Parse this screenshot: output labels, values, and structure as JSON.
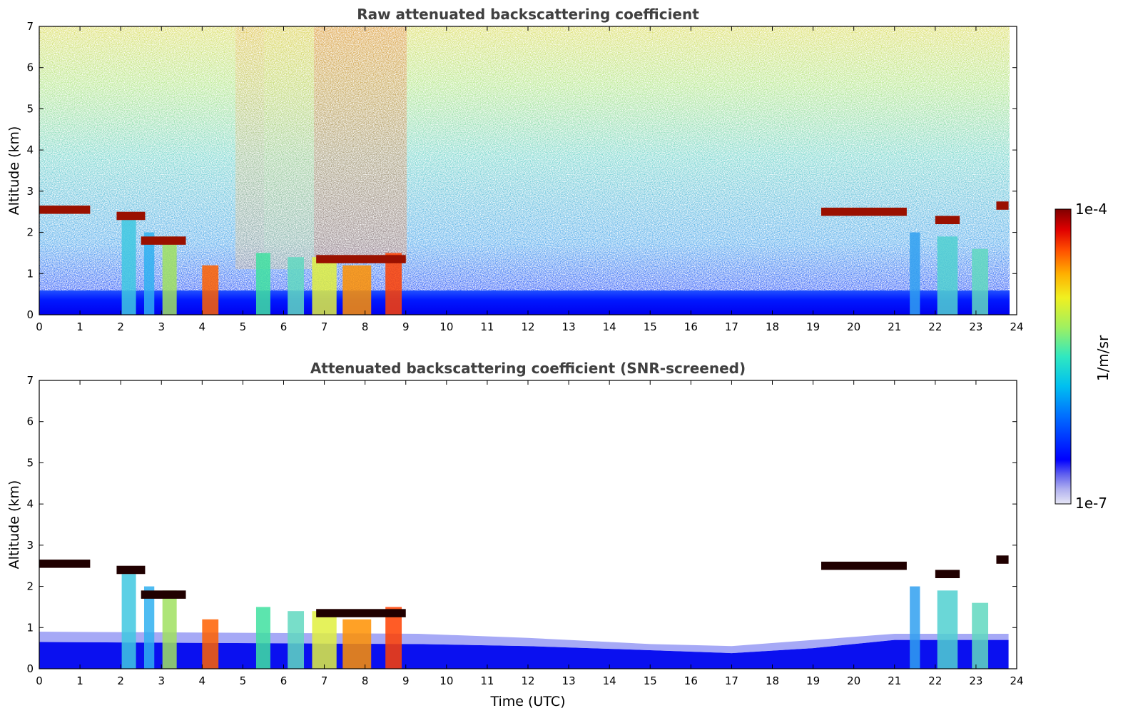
{
  "chart_data": [
    {
      "type": "heatmap",
      "title": "Raw attenuated backscattering coefficient",
      "xlabel": "",
      "ylabel": "Altitude (km)",
      "xlim": [
        0,
        24
      ],
      "ylim": [
        0,
        7
      ],
      "x_ticks": [
        "0",
        "1",
        "2",
        "3",
        "4",
        "5",
        "6",
        "7",
        "8",
        "9",
        "10",
        "11",
        "12",
        "13",
        "14",
        "15",
        "16",
        "17",
        "18",
        "19",
        "20",
        "21",
        "22",
        "23",
        "24"
      ],
      "y_ticks": [
        "0",
        "1",
        "2",
        "3",
        "4",
        "5",
        "6",
        "7"
      ],
      "data_end_x": 23.8,
      "grid": false,
      "layers": {
        "near_surface_blue_top_km": 0.5,
        "cloud_top_morning_km": 2.5,
        "cloud_top_evening_km": 2.45
      }
    },
    {
      "type": "heatmap",
      "title": "Attenuated backscattering coefficient (SNR-screened)",
      "xlabel": "Time (UTC)",
      "ylabel": "Altitude (km)",
      "xlim": [
        0,
        24
      ],
      "ylim": [
        0,
        7
      ],
      "x_ticks": [
        "0",
        "1",
        "2",
        "3",
        "4",
        "5",
        "6",
        "7",
        "8",
        "9",
        "10",
        "11",
        "12",
        "13",
        "14",
        "15",
        "16",
        "17",
        "18",
        "19",
        "20",
        "21",
        "22",
        "23",
        "24"
      ],
      "y_ticks": [
        "0",
        "1",
        "2",
        "3",
        "4",
        "5",
        "6",
        "7"
      ],
      "data_end_x": 23.8,
      "grid": false
    }
  ],
  "colorbar": {
    "label": "1/m/sr",
    "max_label": "1e-4",
    "min_label": "1e-7",
    "scale": "log",
    "colors": [
      "#e6e6f5",
      "#c4c4ee",
      "#9a9aec",
      "#5858ee",
      "#0000ff",
      "#0030ff",
      "#0070ff",
      "#00b0ff",
      "#00e0e0",
      "#40f0a0",
      "#a0f060",
      "#e8f020",
      "#ffd000",
      "#ff9000",
      "#ff4000",
      "#e00000",
      "#800000"
    ]
  }
}
